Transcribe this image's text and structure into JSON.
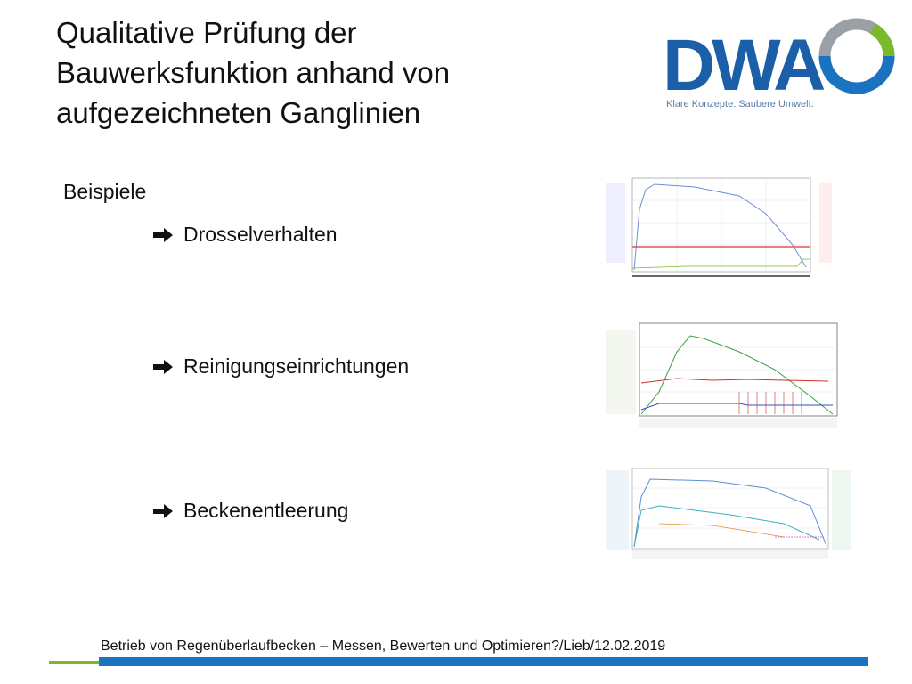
{
  "header": {
    "title_lines": [
      "Qualitative Prüfung der",
      "Bauwerksfunktion anhand von",
      "aufgezeichneten Ganglinien"
    ],
    "logo": "DWA",
    "tagline": "Klare Konzepte. Saubere Umwelt."
  },
  "content": {
    "heading": "Beispiele",
    "items": [
      "Drosselverhalten",
      "Reinigungseinrichtungen",
      "Beckenentleerung"
    ]
  },
  "footer": {
    "text": "Betrieb von Regenüberlaufbecken – Messen, Bewerten und Optimieren?/Lieb/12.02.2019"
  }
}
